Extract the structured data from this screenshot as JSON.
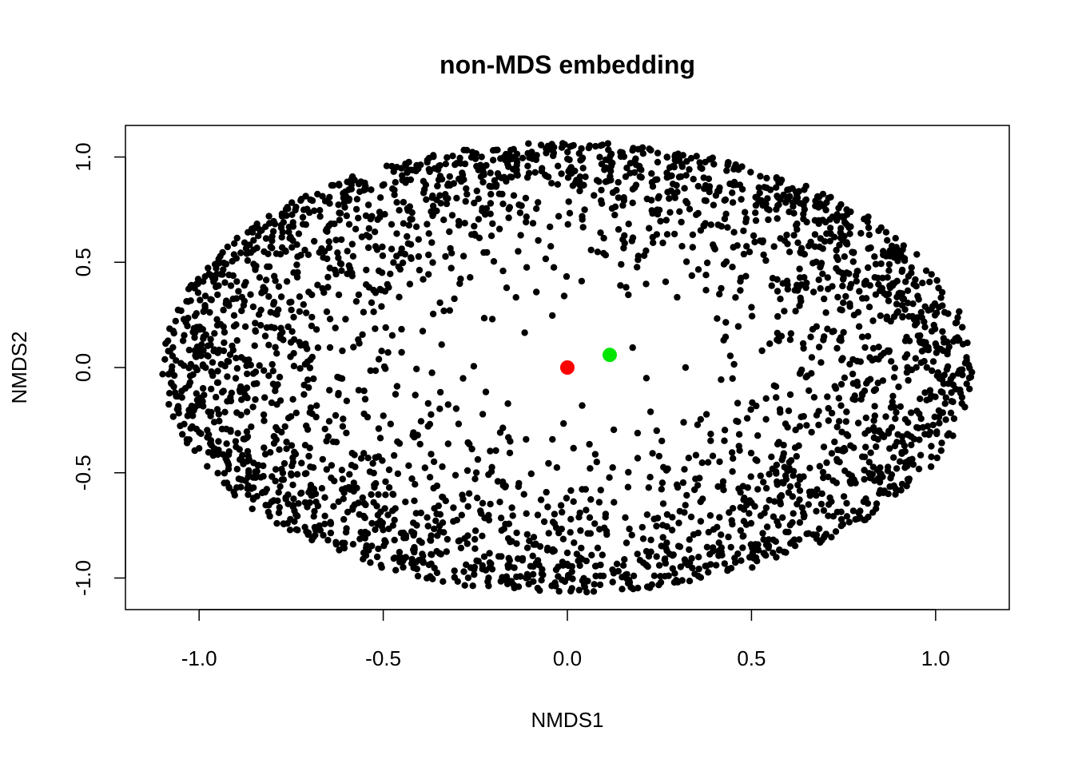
{
  "chart_data": {
    "type": "scatter",
    "title": "non-MDS embedding",
    "xlabel": "NMDS1",
    "ylabel": "NMDS2",
    "xlim": [
      -1.2,
      1.2
    ],
    "ylim": [
      -1.15,
      1.15
    ],
    "x_ticks": [
      -1.0,
      -0.5,
      0.0,
      0.5,
      1.0
    ],
    "x_tick_labels": [
      "-1.0",
      "-0.5",
      "0.0",
      "0.5",
      "1.0"
    ],
    "y_ticks": [
      -1.0,
      -0.5,
      0.0,
      0.5,
      1.0
    ],
    "y_tick_labels": [
      "-1.0",
      "-0.5",
      "0.0",
      "0.5",
      "1.0"
    ],
    "grid": false,
    "legend": "none",
    "cloud": {
      "shape": "ellipse",
      "center": [
        0.0,
        0.0
      ],
      "x_radius": 1.1,
      "y_radius": 1.07,
      "approx_point_count": 3000,
      "concentrated_near_boundary": true,
      "color": "#000000"
    },
    "highlighted_points": [
      {
        "x": 0.0,
        "y": 0.0,
        "color": "#ff0000"
      },
      {
        "x": 0.115,
        "y": 0.06,
        "color": "#00e600"
      }
    ]
  }
}
